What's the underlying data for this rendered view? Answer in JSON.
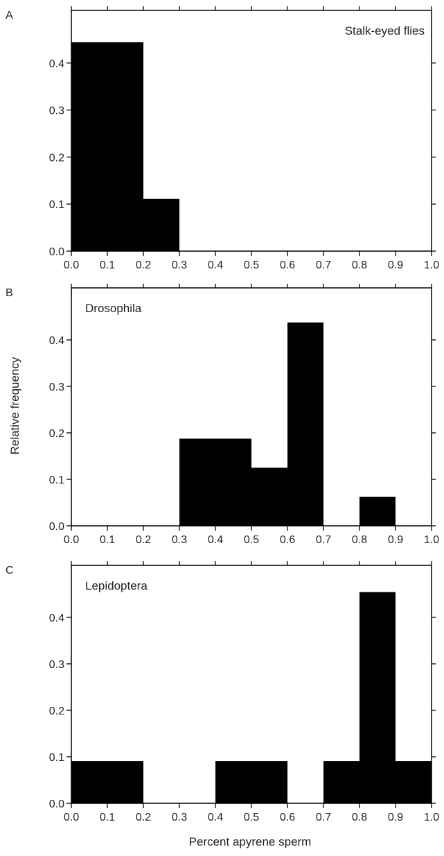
{
  "figure": {
    "ylabel": "Relative frequency",
    "xlabel": "Percent apyrene sperm"
  },
  "colors": {
    "bar": "#000000",
    "axis": "#000000",
    "text": "#222222"
  },
  "chart_data": [
    {
      "type": "bar",
      "panel_letter": "A",
      "title": "Stalk-eyed flies",
      "title_align": "right",
      "xlim": [
        0.0,
        1.0
      ],
      "ylim": [
        0.0,
        0.5
      ],
      "xticks": [
        "0.0",
        "0.1",
        "0.2",
        "0.3",
        "0.4",
        "0.5",
        "0.6",
        "0.7",
        "0.8",
        "0.9",
        "1.0"
      ],
      "yticks": [
        "0.0",
        "0.1",
        "0.2",
        "0.3",
        "0.4"
      ],
      "bins": [
        {
          "x0": 0.0,
          "x1": 0.2,
          "value": 0.444
        },
        {
          "x0": 0.2,
          "x1": 0.3,
          "value": 0.111
        }
      ]
    },
    {
      "type": "bar",
      "panel_letter": "B",
      "title": "Drosophila",
      "title_align": "left",
      "xlim": [
        0.0,
        1.0
      ],
      "ylim": [
        0.0,
        0.5
      ],
      "xticks": [
        "0.0",
        "0.1",
        "0.2",
        "0.3",
        "0.4",
        "0.5",
        "0.6",
        "0.7",
        "0.8",
        "0.9",
        "1.0"
      ],
      "yticks": [
        "0.0",
        "0.1",
        "0.2",
        "0.3",
        "0.4"
      ],
      "bins": [
        {
          "x0": 0.3,
          "x1": 0.5,
          "value": 0.1875
        },
        {
          "x0": 0.5,
          "x1": 0.6,
          "value": 0.125
        },
        {
          "x0": 0.6,
          "x1": 0.7,
          "value": 0.4375
        },
        {
          "x0": 0.8,
          "x1": 0.9,
          "value": 0.0625
        }
      ]
    },
    {
      "type": "bar",
      "panel_letter": "C",
      "title": "Lepidoptera",
      "title_align": "left",
      "xlim": [
        0.0,
        1.0
      ],
      "ylim": [
        0.0,
        0.5
      ],
      "xticks": [
        "0.0",
        "0.1",
        "0.2",
        "0.3",
        "0.4",
        "0.5",
        "0.6",
        "0.7",
        "0.8",
        "0.9",
        "1.0"
      ],
      "yticks": [
        "0.0",
        "0.1",
        "0.2",
        "0.3",
        "0.4"
      ],
      "bins": [
        {
          "x0": 0.0,
          "x1": 0.2,
          "value": 0.0909
        },
        {
          "x0": 0.4,
          "x1": 0.6,
          "value": 0.0909
        },
        {
          "x0": 0.7,
          "x1": 0.8,
          "value": 0.0909
        },
        {
          "x0": 0.8,
          "x1": 0.9,
          "value": 0.4545
        },
        {
          "x0": 0.9,
          "x1": 1.0,
          "value": 0.0909
        }
      ]
    }
  ]
}
